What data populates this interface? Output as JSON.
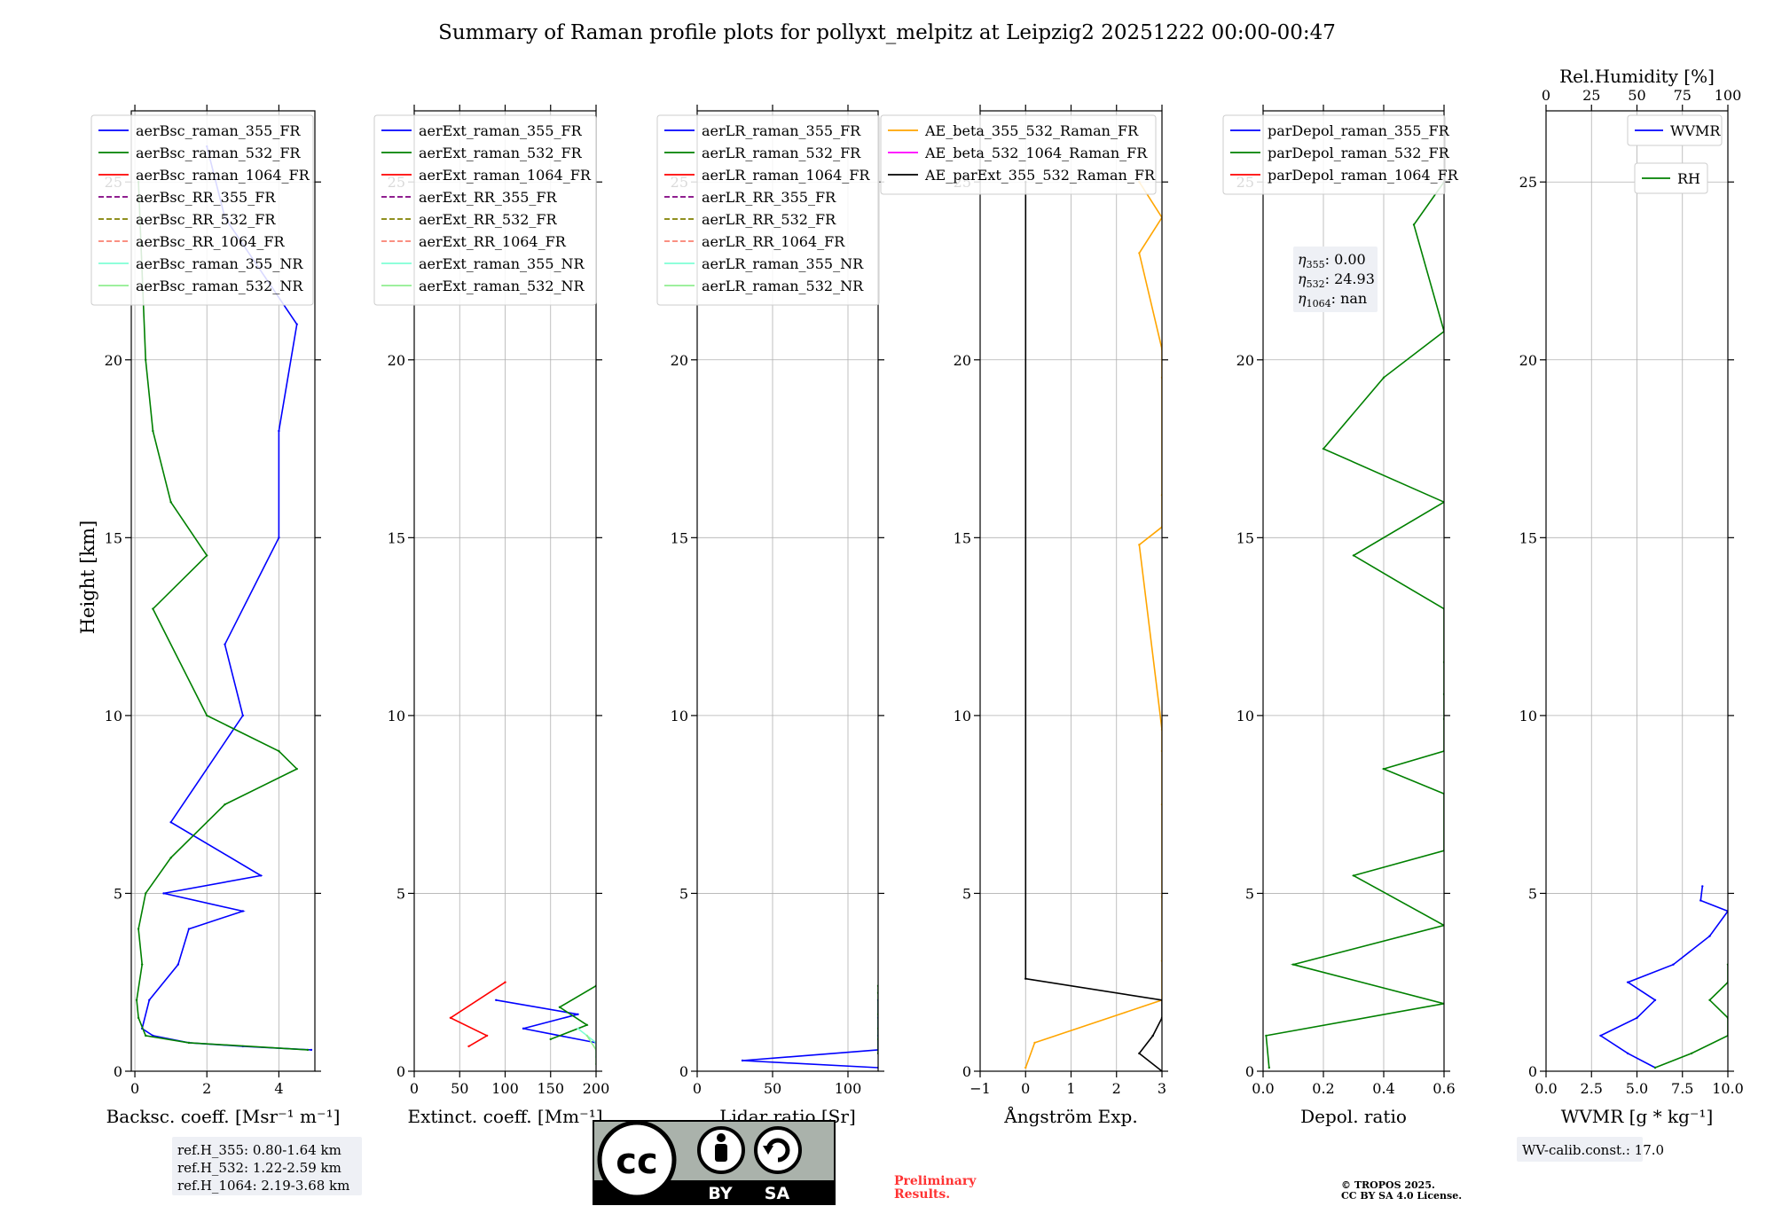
{
  "title": "Summary of Raman profile plots for pollyxt_melpitz at Leipzig2 20251222 00:00-00:47",
  "y_label": "Height [km]",
  "y_ticks": [
    "0",
    "5",
    "10",
    "15",
    "20",
    "25"
  ],
  "colors": {
    "blue": "#0000ff",
    "green": "#008000",
    "red": "#ff0000",
    "purple": "#800080",
    "olive": "#808000",
    "salmon": "#fa8072",
    "cyan": "#7fffd4",
    "lightgreen": "#90ee90",
    "orange": "#ffa500",
    "magenta": "#ff00ff",
    "black": "#000000"
  },
  "chart_data": [
    {
      "type": "line",
      "id": "bsc",
      "xlabel": "Backsc. coeff. [Msr⁻¹ m⁻¹]",
      "xlim": [
        -0.1,
        5
      ],
      "ylim": [
        0,
        27
      ],
      "x_ticks": [
        0,
        2,
        4
      ],
      "x_tick_labels": [
        "0",
        "2",
        "4"
      ],
      "legend": [
        "aerBsc_raman_355_FR",
        "aerBsc_raman_532_FR",
        "aerBsc_raman_1064_FR",
        "aerBsc_RR_355_FR",
        "aerBsc_RR_532_FR",
        "aerBsc_RR_1064_FR",
        "aerBsc_raman_355_NR",
        "aerBsc_raman_532_NR"
      ],
      "series": [
        {
          "name": "aerBsc_raman_355_FR",
          "color": "blue",
          "y": [
            0.6,
            0.7,
            0.8,
            1.0,
            1.2,
            2.0,
            3.0,
            4.0,
            4.5,
            5.0,
            5.5,
            7.0,
            10.0,
            12.0,
            15.0,
            18.0,
            21.0,
            24.0,
            26.0
          ],
          "x": [
            4.9,
            3.0,
            1.5,
            0.5,
            0.2,
            0.4,
            1.2,
            1.5,
            3.0,
            0.8,
            3.5,
            1.0,
            3.0,
            2.5,
            4.0,
            4.0,
            4.5,
            2.5,
            2.0
          ]
        },
        {
          "name": "aerBsc_raman_532_FR",
          "color": "green",
          "y": [
            0.6,
            0.8,
            1.0,
            1.5,
            2.0,
            3.0,
            4.0,
            5.0,
            6.0,
            7.5,
            8.5,
            9.0,
            10.0,
            13.0,
            14.5,
            16.0,
            18.0,
            20.0,
            25.0
          ],
          "x": [
            4.8,
            1.5,
            0.3,
            0.1,
            0.05,
            0.2,
            0.1,
            0.3,
            1.0,
            2.5,
            4.5,
            4.0,
            2.0,
            0.5,
            2.0,
            1.0,
            0.5,
            0.3,
            0.1
          ]
        }
      ]
    },
    {
      "type": "line",
      "id": "ext",
      "xlabel": "Extinct. coeff. [Mm⁻¹]",
      "xlim": [
        0,
        200
      ],
      "ylim": [
        0,
        27
      ],
      "x_ticks": [
        0,
        50,
        100,
        150,
        200
      ],
      "x_tick_labels": [
        "0",
        "50",
        "100",
        "150",
        "200"
      ],
      "legend": [
        "aerExt_raman_355_FR",
        "aerExt_raman_532_FR",
        "aerExt_raman_1064_FR",
        "aerExt_RR_355_FR",
        "aerExt_RR_532_FR",
        "aerExt_RR_1064_FR",
        "aerExt_raman_355_NR",
        "aerExt_raman_532_NR"
      ],
      "series": [
        {
          "name": "aerExt_raman_355_FR",
          "color": "blue",
          "y": [
            0.8,
            1.2,
            1.6,
            2.0
          ],
          "x": [
            200,
            120,
            180,
            90
          ]
        },
        {
          "name": "aerExt_raman_532_FR",
          "color": "green",
          "y": [
            0.9,
            1.3,
            1.8,
            2.4
          ],
          "x": [
            150,
            190,
            160,
            200
          ]
        },
        {
          "name": "aerExt_raman_1064_FR",
          "color": "red",
          "y": [
            0.7,
            1.0,
            1.5,
            2.5
          ],
          "x": [
            60,
            80,
            40,
            100
          ]
        },
        {
          "name": "aerExt_raman_355_NR",
          "color": "cyan",
          "y": [
            0.4,
            0.8,
            1.2
          ],
          "x": [
            200,
            200,
            180
          ]
        },
        {
          "name": "aerExt_raman_532_NR",
          "color": "lightgreen",
          "y": [
            0.2,
            0.6,
            1.0
          ],
          "x": [
            200,
            200,
            190
          ]
        }
      ]
    },
    {
      "type": "line",
      "id": "lr",
      "xlabel": "Lidar ratio [Sr]",
      "xlim": [
        0,
        120
      ],
      "ylim": [
        0,
        27
      ],
      "x_ticks": [
        0,
        50,
        100
      ],
      "x_tick_labels": [
        "0",
        "50",
        "100"
      ],
      "legend": [
        "aerLR_raman_355_FR",
        "aerLR_raman_532_FR",
        "aerLR_raman_1064_FR",
        "aerLR_RR_355_FR",
        "aerLR_RR_532_FR",
        "aerLR_RR_1064_FR",
        "aerLR_raman_355_NR",
        "aerLR_raman_532_NR"
      ],
      "series": [
        {
          "name": "aerLR_raman_355_FR",
          "color": "blue",
          "y": [
            0.1,
            0.3,
            0.6,
            1.0,
            1.5,
            2.0
          ],
          "x": [
            120,
            30,
            120,
            120,
            120,
            120
          ]
        },
        {
          "name": "aerLR_raman_532_FR",
          "color": "green",
          "y": [
            0.5,
            0.9,
            1.2,
            1.6,
            2.2,
            2.4
          ],
          "x": [
            120,
            120,
            120,
            120,
            120,
            120
          ]
        }
      ]
    },
    {
      "type": "line",
      "id": "ae",
      "xlabel": "Ångström Exp.",
      "xlim": [
        -1,
        3
      ],
      "ylim": [
        0,
        27
      ],
      "x_ticks": [
        -1,
        0,
        1,
        2,
        3
      ],
      "x_tick_labels": [
        "−1",
        "0",
        "1",
        "2",
        "3"
      ],
      "legend": [
        "AE_beta_355_532_Raman_FR",
        "AE_beta_532_1064_Raman_FR",
        "AE_parExt_355_532_Raman_FR"
      ],
      "series": [
        {
          "name": "AE_beta_355_532_Raman_FR",
          "color": "orange",
          "y": [
            0.1,
            0.8,
            2.0,
            3.1,
            4.9,
            7.5,
            9.0,
            9.6,
            14.8,
            15.3,
            16.2,
            19.5,
            20.3,
            23.0,
            24.0,
            25.0
          ],
          "x": [
            0.0,
            0.2,
            3.0,
            3.0,
            3.0,
            3.0,
            3.0,
            3.0,
            2.5,
            3.0,
            3.0,
            3.0,
            3.0,
            2.5,
            3.0,
            2.5
          ]
        },
        {
          "name": "AE_parExt_355_532_Raman_FR",
          "color": "black",
          "y": [
            0.0,
            0.5,
            1.0,
            1.5,
            2.0,
            2.6,
            25.0
          ],
          "x": [
            3.0,
            2.5,
            2.8,
            3.0,
            3.0,
            0.0,
            0.0
          ]
        }
      ]
    },
    {
      "type": "line",
      "id": "depol",
      "xlabel": "Depol. ratio",
      "xlim": [
        0,
        0.6
      ],
      "ylim": [
        0,
        27
      ],
      "x_ticks": [
        0,
        0.2,
        0.4,
        0.6
      ],
      "x_tick_labels": [
        "0.0",
        "0.2",
        "0.4",
        "0.6"
      ],
      "legend": [
        "parDepol_raman_355_FR",
        "parDepol_raman_532_FR",
        "parDepol_raman_1064_FR"
      ],
      "series": [
        {
          "name": "parDepol_raman_532_FR",
          "color": "green",
          "y": [
            0.1,
            1.0,
            1.9,
            3.0,
            4.1,
            5.5,
            6.2,
            7.8,
            8.5,
            9.0,
            9.9,
            10.6,
            11.5,
            13.0,
            14.5,
            16.0,
            17.5,
            19.5,
            20.8,
            23.8,
            25.0
          ],
          "x": [
            0.02,
            0.01,
            0.6,
            0.1,
            0.6,
            0.3,
            0.6,
            0.6,
            0.4,
            0.6,
            0.6,
            0.6,
            0.6,
            0.6,
            0.3,
            0.6,
            0.2,
            0.4,
            0.6,
            0.5,
            0.6
          ]
        }
      ],
      "annotations": [
        {
          "sym": "η",
          "sub": "355",
          "value": ": 0.00"
        },
        {
          "sym": "η",
          "sub": "532",
          "value": ": 24.93"
        },
        {
          "sym": "η",
          "sub": "1064",
          "value": ": nan"
        }
      ]
    },
    {
      "type": "line",
      "id": "wv",
      "xlabel": "WVMR [g * kg⁻¹]",
      "xlim": [
        0,
        10
      ],
      "ylim": [
        0,
        27
      ],
      "x_ticks": [
        0,
        2.5,
        5,
        7.5,
        10
      ],
      "x_tick_labels": [
        "0.0",
        "2.5",
        "5.0",
        "7.5",
        "10.0"
      ],
      "top_xlabel": "Rel.Humidity [%]",
      "top_xlim": [
        0,
        100
      ],
      "top_x_ticks": [
        0,
        25,
        50,
        75,
        100
      ],
      "top_x_tick_labels": [
        "0",
        "25",
        "50",
        "75",
        "100"
      ],
      "legend": [
        "WVMR",
        "RH"
      ],
      "series": [
        {
          "name": "WVMR",
          "color": "blue",
          "y": [
            0.1,
            0.5,
            1.0,
            1.5,
            2.0,
            2.5,
            3.0,
            3.8,
            4.5,
            4.8,
            5.2
          ],
          "x": [
            6.0,
            4.5,
            3.0,
            5.0,
            6.0,
            4.5,
            7.0,
            9.0,
            10.0,
            8.5,
            8.6
          ]
        },
        {
          "name": "RH",
          "color": "green",
          "y": [
            0.1,
            0.5,
            1.0,
            1.5,
            2.0,
            2.5,
            3.0
          ],
          "x": [
            60,
            80,
            100,
            100,
            90,
            100,
            100
          ]
        }
      ],
      "calib": "WV-calib.const.: 17.0"
    }
  ],
  "ref_heights": [
    "ref.H_355: 0.80-1.64 km",
    "ref.H_532: 1.22-2.59 km",
    "ref.H_1064: 2.19-3.68 km"
  ],
  "license": {
    "left": "BY",
    "right": "SA"
  },
  "preliminary": [
    "Preliminary",
    "Results."
  ],
  "copyright": [
    "© TROPOS 2025.",
    "CC BY SA 4.0 License."
  ]
}
